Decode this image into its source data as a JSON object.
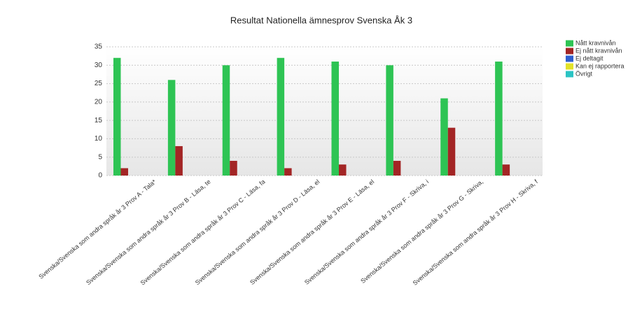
{
  "chart_data": {
    "type": "bar",
    "title": "Resultat Nationella ämnesprov Svenska Åk 3",
    "categories": [
      "Svenska/Svenska som andra språk år 3 Prov A - Tala*",
      "Svenska/Svenska som andra språk år 3 Prov B - Läsa, te",
      "Svenska/Svenska som andra språk år 3 Prov C - Läsa, fa",
      "Svenska/Svenska som andra språk år 3 Prov D - Läsa, el",
      "Svenska/Svenska som andra språk år 3 Prov E - Läsa, el",
      "Svenska/Svenska som andra språk år 3 Prov F - Skriva, i",
      "Svenska/Svenska som andra språk år 3 Prov G - Skriva,",
      "Svenska/Svenska som andra språk år 3 Prov H - Skriva, f"
    ],
    "series": [
      {
        "name": "Nått kravnivån",
        "color": "#2ec454",
        "values": [
          32,
          26,
          30,
          32,
          31,
          30,
          21,
          31
        ]
      },
      {
        "name": "Ej nått kravnivån",
        "color": "#a32525",
        "values": [
          2,
          8,
          4,
          2,
          3,
          4,
          13,
          3
        ]
      },
      {
        "name": "Ej deltagit",
        "color": "#2f5fd0",
        "values": [
          0,
          0,
          0,
          0,
          0,
          0,
          0,
          0
        ]
      },
      {
        "name": "Kan ej rapportera",
        "color": "#e2e22a",
        "values": [
          0,
          0,
          0,
          0,
          0,
          0,
          0,
          0
        ]
      },
      {
        "name": "Övrigt",
        "color": "#2bc4c4",
        "values": [
          0,
          0,
          0,
          0,
          0,
          0,
          0,
          0
        ]
      }
    ],
    "ylim": [
      0,
      35
    ],
    "yticks": [
      0,
      5,
      10,
      15,
      20,
      25,
      30,
      35
    ],
    "grid": true,
    "legend": "right"
  }
}
